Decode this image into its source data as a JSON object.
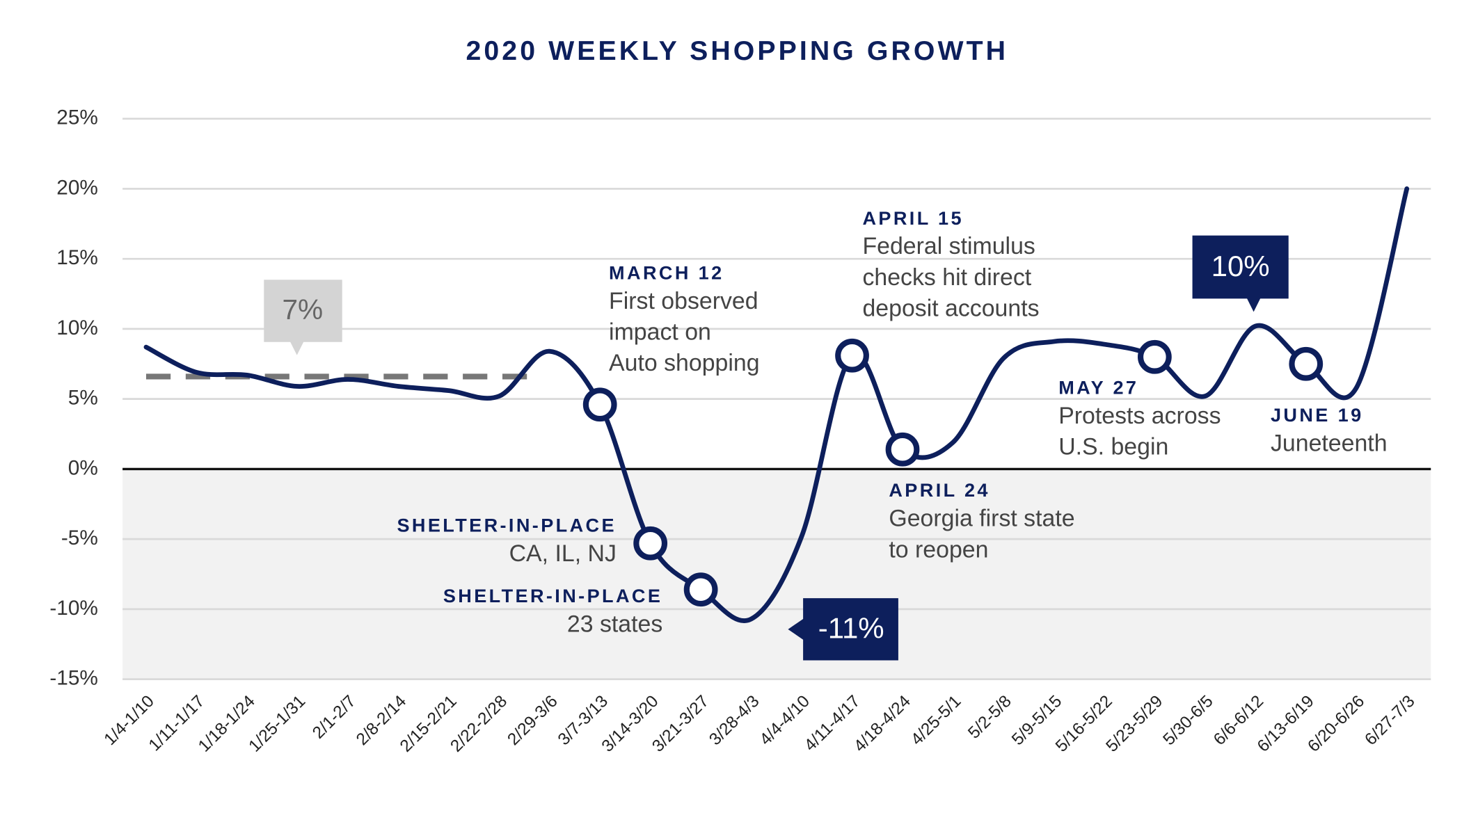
{
  "chart_data": {
    "type": "line",
    "title": "2020 WEEKLY SHOPPING GROWTH",
    "categories": [
      "1/4-1/10",
      "1/11-1/17",
      "1/18-1/24",
      "1/25-1/31",
      "2/1-2/7",
      "2/8-2/14",
      "2/15-2/21",
      "2/22-2/28",
      "2/29-3/6",
      "3/7-3/13",
      "3/14-3/20",
      "3/21-3/27",
      "3/28-4/3",
      "4/4-4/10",
      "4/11-4/17",
      "4/18-4/24",
      "4/25-5/1",
      "5/2-5/8",
      "5/9-5/15",
      "5/16-5/22",
      "5/23-5/29",
      "5/30-6/5",
      "6/6-6/12",
      "6/13-6/19",
      "6/20-6/26",
      "6/27-7/3"
    ],
    "series": [
      {
        "name": "Weekly shopping growth",
        "color": "#0d1f5c",
        "values": [
          8.7,
          6.9,
          6.7,
          5.9,
          6.4,
          5.9,
          5.6,
          5.2,
          8.4,
          4.6,
          -5.3,
          -8.6,
          -10.7,
          -4.8,
          8.1,
          1.4,
          1.9,
          7.9,
          9.1,
          8.9,
          8.0,
          5.2,
          10.2,
          7.5,
          5.8,
          20.0
        ]
      }
    ],
    "ylim": [
      -15,
      25
    ],
    "yticks": [
      {
        "value": -15,
        "label": "-15%"
      },
      {
        "value": -10,
        "label": "-10%"
      },
      {
        "value": -5,
        "label": "-5%"
      },
      {
        "value": 0,
        "label": "0%"
      },
      {
        "value": 5,
        "label": "5%"
      },
      {
        "value": 10,
        "label": "10%"
      },
      {
        "value": 15,
        "label": "15%"
      },
      {
        "value": 20,
        "label": "20%"
      },
      {
        "value": 25,
        "label": "25%"
      }
    ],
    "grid": true,
    "reference_line": {
      "value": 6.6,
      "label": "7%",
      "color": "#777777"
    },
    "callouts": [
      {
        "label": "-11%"
      },
      {
        "label": "10%"
      }
    ],
    "annotations": [
      {
        "title": "MARCH 12",
        "lines": [
          "First observed",
          "impact on",
          "Auto shopping"
        ]
      },
      {
        "title": "APRIL 15",
        "lines": [
          "Federal stimulus",
          "checks hit direct",
          "deposit accounts"
        ]
      },
      {
        "title": "MAY 27",
        "lines": [
          "Protests across",
          "U.S. begin"
        ]
      },
      {
        "title": "JUNE 19",
        "lines": [
          "Juneteenth"
        ]
      },
      {
        "title": "APRIL 24",
        "lines": [
          "Georgia first state",
          "to reopen"
        ]
      },
      {
        "title": "SHELTER-IN-PLACE",
        "lines": [
          "CA, IL, NJ"
        ]
      },
      {
        "title": "SHELTER-IN-PLACE",
        "lines": [
          "23 states"
        ]
      }
    ]
  }
}
